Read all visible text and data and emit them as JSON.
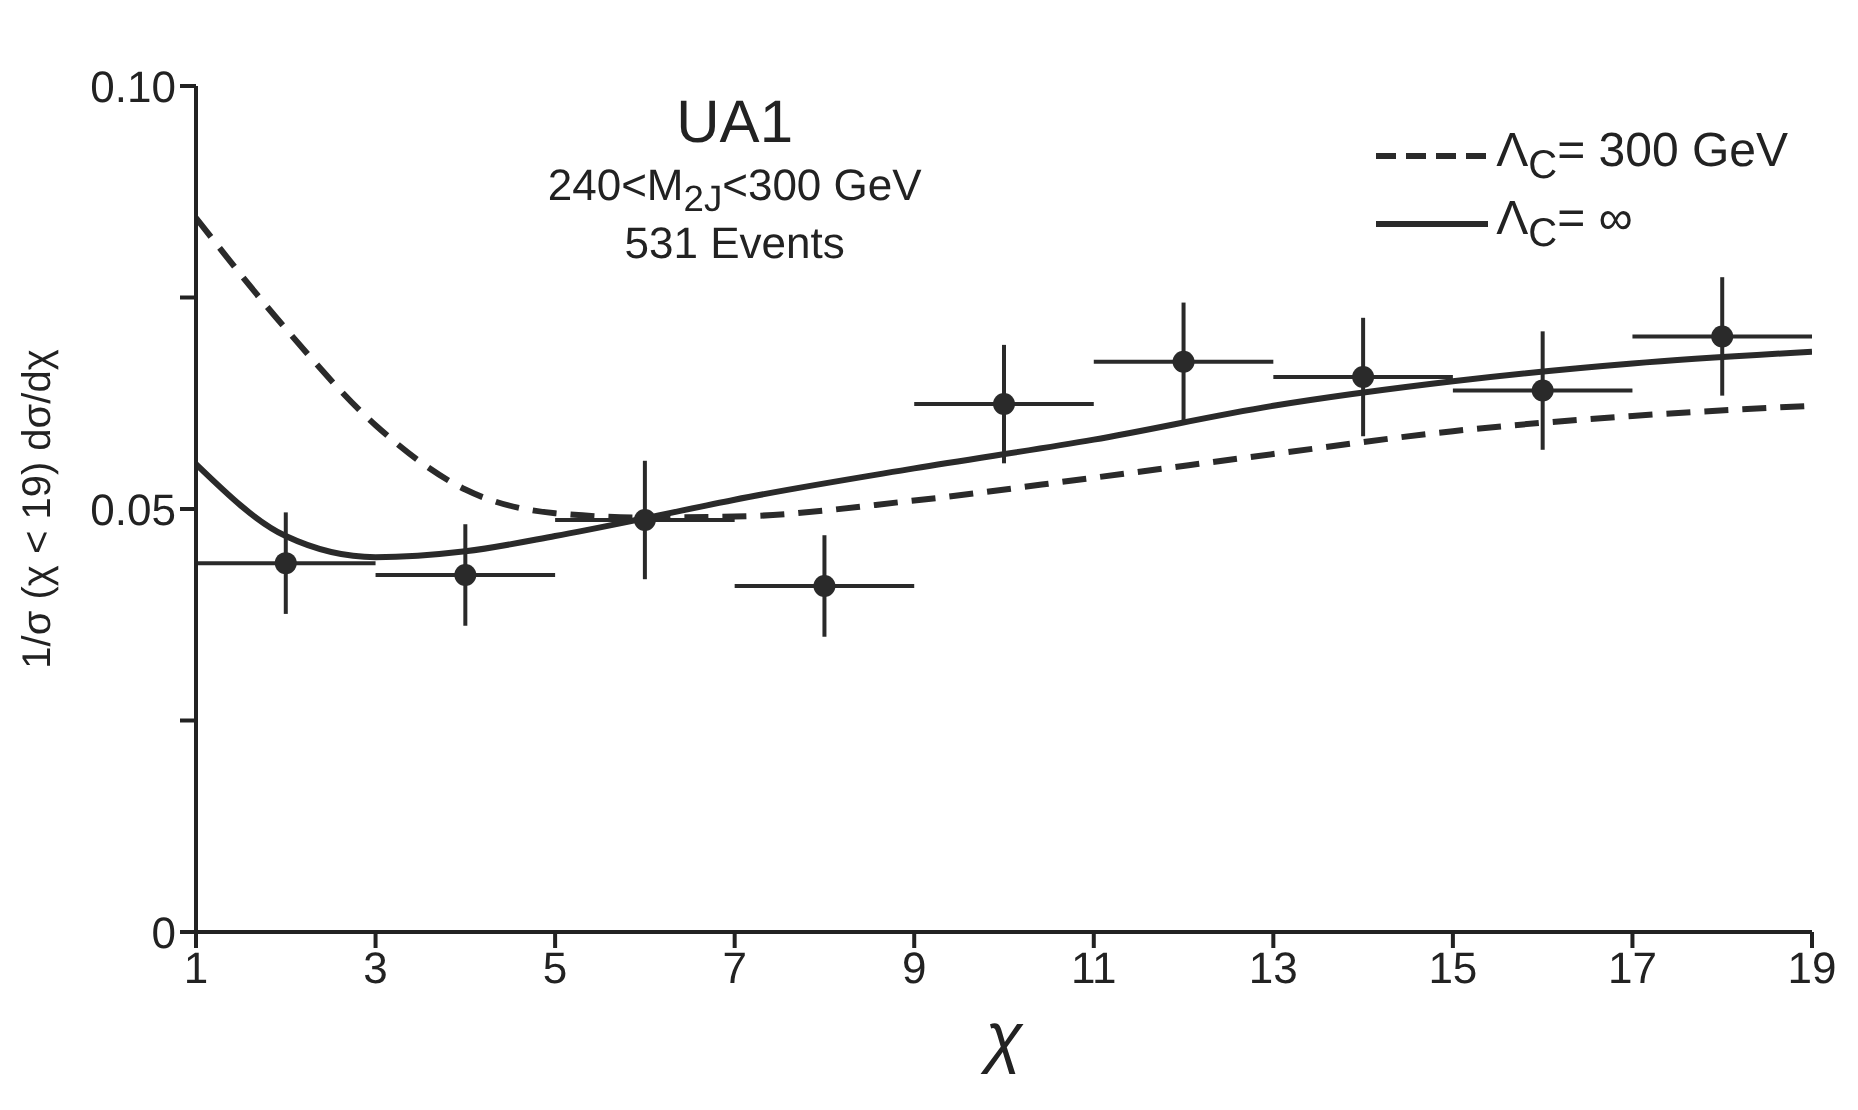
{
  "chart_data": {
    "type": "line",
    "title": "UA1",
    "subtitle": "240<M$_{2J}$<300 GeV",
    "annotations": [
      "531 Events"
    ],
    "xlabel": "χ",
    "ylabel": "1/σ (χ < 19) dσ/dχ",
    "xlim": [
      1,
      19
    ],
    "xticks": [
      1,
      3,
      5,
      7,
      9,
      11,
      13,
      15,
      17,
      19
    ],
    "ylim": [
      0,
      0.1
    ],
    "yticks": [
      0,
      {
        "value": 0.025,
        "label": null
      },
      {
        "value": 0.05,
        "label": "0.05"
      },
      {
        "value": 0.075,
        "label": null
      },
      {
        "value": 0.1,
        "label": "0.10"
      }
    ],
    "legend": "top right",
    "grid": false,
    "series": [
      {
        "name": "Λ$_{C}$= 300 GeV",
        "color": "#2a2a2a",
        "line_style": "dashed",
        "marker": "none",
        "x": [
          1,
          2,
          3,
          4,
          5,
          6,
          7,
          9,
          11,
          13,
          15,
          17,
          19
        ],
        "values": [
          0.0844,
          0.0713,
          0.0599,
          0.0523,
          0.0495,
          0.049,
          0.0491,
          0.051,
          0.0537,
          0.0565,
          0.0592,
          0.061,
          0.0622
        ]
      },
      {
        "name": "Λ$_{C}$= ∞",
        "color": "#2a2a2a",
        "line_style": "solid",
        "marker": "none",
        "x": [
          1,
          2,
          3,
          4,
          5,
          6,
          7,
          9,
          11,
          13,
          15,
          17,
          19
        ],
        "values": [
          0.0553,
          0.0468,
          0.0443,
          0.045,
          0.0468,
          0.0489,
          0.0511,
          0.0548,
          0.0582,
          0.0622,
          0.0651,
          0.0672,
          0.0686
        ]
      },
      {
        "type": "scatter",
        "color": "#2a2a2a",
        "marker": "circle",
        "x": [
          2,
          4,
          6,
          8,
          10,
          12,
          14,
          16,
          18
        ],
        "values": [
          0.0436,
          0.0422,
          0.0487,
          0.0409,
          0.0624,
          0.0674,
          0.0656,
          0.064,
          0.0704
        ],
        "errors": [
          0.006,
          0.006,
          0.007,
          0.006,
          0.007,
          0.007,
          0.007,
          0.007,
          0.007
        ],
        "xerrors": [
          1,
          1,
          1,
          1,
          1,
          1,
          1,
          1,
          1
        ]
      }
    ]
  }
}
